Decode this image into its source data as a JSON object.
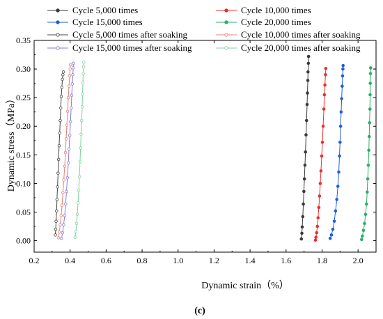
{
  "chart_data": {
    "type": "line",
    "caption": "(c)",
    "xlabel": "Dynamic strain（%）",
    "ylabel": "Dynamic stress（MPa）",
    "xlim": [
      0.2,
      2.1
    ],
    "ylim": [
      -0.02,
      0.35
    ],
    "x_ticks": [
      "0.2",
      "0.4",
      "0.6",
      "0.8",
      "1.0",
      "1.2",
      "1.4",
      "1.6",
      "1.8",
      "2.0"
    ],
    "y_ticks": [
      "0.00",
      "0.05",
      "0.10",
      "0.15",
      "0.20",
      "0.25",
      "0.30",
      "0.35"
    ],
    "x_tick_values": [
      0.2,
      0.4,
      0.6,
      0.8,
      1.0,
      1.2,
      1.4,
      1.6,
      1.8,
      2.0
    ],
    "y_tick_values": [
      0.0,
      0.05,
      0.1,
      0.15,
      0.2,
      0.25,
      0.3,
      0.35
    ],
    "grid": false,
    "legend_position": "top, two columns",
    "series": [
      {
        "name": "Cycle 5,000 times",
        "color": "#3a3a3a",
        "marker": "filled",
        "x": [
          1.685,
          1.688,
          1.69,
          1.693,
          1.696,
          1.699,
          1.702,
          1.705,
          1.708,
          1.711,
          1.714,
          1.717,
          1.719,
          1.721,
          1.722,
          1.724,
          1.725
        ],
        "y": [
          0.003,
          0.013,
          0.024,
          0.042,
          0.064,
          0.086,
          0.108,
          0.132,
          0.155,
          0.185,
          0.21,
          0.238,
          0.258,
          0.28,
          0.295,
          0.31,
          0.322
        ]
      },
      {
        "name": "Cycle 10,000 times",
        "color": "#e8302f",
        "marker": "filled",
        "x": [
          1.763,
          1.766,
          1.77,
          1.774,
          1.778,
          1.782,
          1.786,
          1.79,
          1.794,
          1.798,
          1.802,
          1.806,
          1.81,
          1.813,
          1.816,
          1.819,
          1.821
        ],
        "y": [
          0.001,
          0.006,
          0.014,
          0.025,
          0.04,
          0.058,
          0.078,
          0.1,
          0.122,
          0.148,
          0.172,
          0.2,
          0.23,
          0.255,
          0.272,
          0.29,
          0.301
        ]
      },
      {
        "name": "Cycle 15,000 times",
        "color": "#1f5fd6",
        "marker": "filled",
        "x": [
          1.845,
          1.852,
          1.86,
          1.868,
          1.875,
          1.882,
          1.888,
          1.893,
          1.897,
          1.9,
          1.903,
          1.906,
          1.909,
          1.912,
          1.914,
          1.916,
          1.917
        ],
        "y": [
          0.004,
          0.01,
          0.02,
          0.034,
          0.052,
          0.072,
          0.095,
          0.12,
          0.148,
          0.172,
          0.2,
          0.225,
          0.248,
          0.27,
          0.288,
          0.3,
          0.306
        ]
      },
      {
        "name": "Cycle 20,000 times",
        "color": "#2bae67",
        "marker": "filled",
        "x": [
          2.02,
          2.024,
          2.03,
          2.036,
          2.042,
          2.047,
          2.051,
          2.054,
          2.057,
          2.06,
          2.062,
          2.064,
          2.066,
          2.067,
          2.068,
          2.069,
          2.07
        ],
        "y": [
          0.002,
          0.008,
          0.018,
          0.03,
          0.046,
          0.064,
          0.085,
          0.108,
          0.132,
          0.158,
          0.182,
          0.206,
          0.23,
          0.255,
          0.275,
          0.292,
          0.302
        ]
      },
      {
        "name": "Cycle 5,000 times after soaking",
        "color": "#444444",
        "marker": "open",
        "x": [
          0.318,
          0.32,
          0.322,
          0.325,
          0.327,
          0.33,
          0.333,
          0.336,
          0.339,
          0.342,
          0.345,
          0.348,
          0.351,
          0.354,
          0.357,
          0.36,
          0.363
        ],
        "y": [
          0.01,
          0.02,
          0.034,
          0.052,
          0.072,
          0.094,
          0.118,
          0.142,
          0.166,
          0.188,
          0.21,
          0.232,
          0.252,
          0.268,
          0.282,
          0.29,
          0.295
        ]
      },
      {
        "name": "Cycle 10,000 times after soaking",
        "color": "#f07a70",
        "marker": "open",
        "x": [
          0.335,
          0.34,
          0.345,
          0.35,
          0.355,
          0.36,
          0.365,
          0.37,
          0.374,
          0.378,
          0.382,
          0.386,
          0.39,
          0.394,
          0.397,
          0.4,
          0.402
        ],
        "y": [
          0.005,
          0.015,
          0.028,
          0.044,
          0.062,
          0.084,
          0.106,
          0.13,
          0.154,
          0.178,
          0.202,
          0.226,
          0.25,
          0.27,
          0.288,
          0.3,
          0.308
        ]
      },
      {
        "name": "Cycle 15,000 times after soaking",
        "color": "#8877dd",
        "marker": "open",
        "x": [
          0.352,
          0.358,
          0.364,
          0.37,
          0.375,
          0.38,
          0.385,
          0.39,
          0.394,
          0.398,
          0.402,
          0.406,
          0.409,
          0.412,
          0.415,
          0.417,
          0.419
        ],
        "y": [
          0.004,
          0.014,
          0.028,
          0.044,
          0.064,
          0.086,
          0.11,
          0.136,
          0.16,
          0.184,
          0.208,
          0.232,
          0.254,
          0.274,
          0.29,
          0.302,
          0.31
        ]
      },
      {
        "name": "Cycle 20,000 times after soaking",
        "color": "#7fd19f",
        "marker": "open",
        "x": [
          0.428,
          0.432,
          0.436,
          0.44,
          0.444,
          0.448,
          0.452,
          0.455,
          0.458,
          0.461,
          0.464,
          0.467,
          0.469,
          0.471,
          0.473,
          0.475,
          0.476
        ],
        "y": [
          0.006,
          0.016,
          0.03,
          0.046,
          0.066,
          0.088,
          0.112,
          0.138,
          0.162,
          0.186,
          0.21,
          0.234,
          0.256,
          0.276,
          0.292,
          0.304,
          0.312
        ]
      }
    ]
  }
}
